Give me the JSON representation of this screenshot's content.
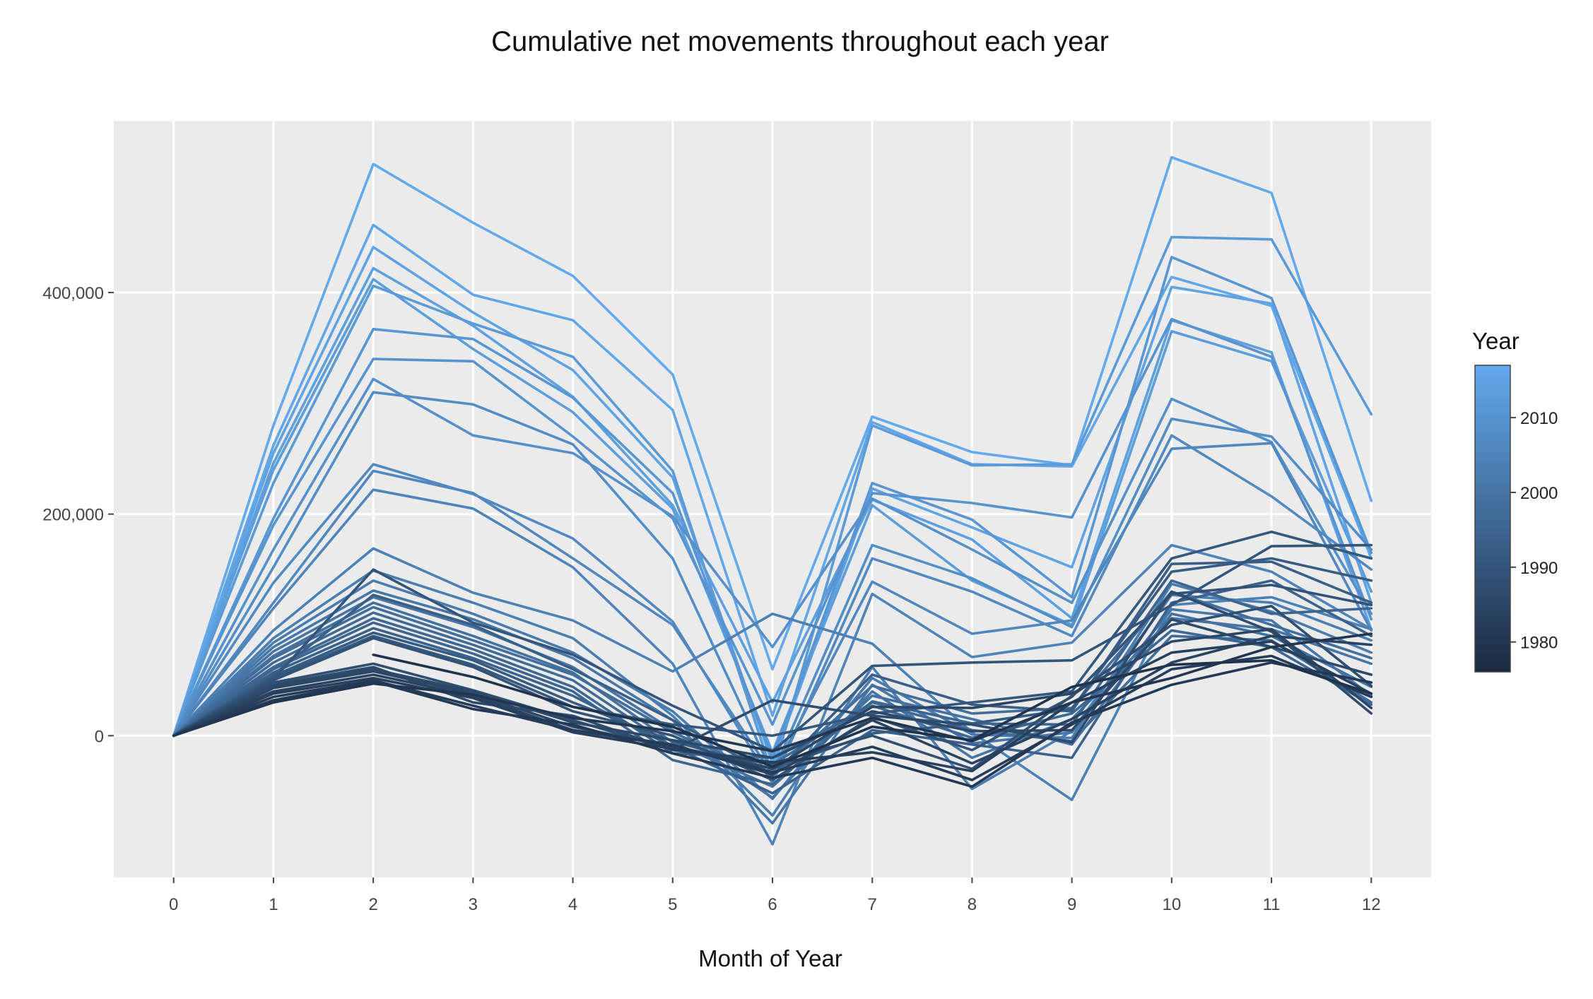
{
  "chart_data": {
    "type": "line",
    "title": "Cumulative net movements throughout each year",
    "xlabel": "Month of Year",
    "ylabel": "",
    "x": [
      0,
      1,
      2,
      3,
      4,
      5,
      6,
      7,
      8,
      9,
      10,
      11,
      12
    ],
    "x_tick_labels": [
      "0",
      "1",
      "2",
      "3",
      "4",
      "5",
      "6",
      "7",
      "8",
      "9",
      "10",
      "11",
      "12"
    ],
    "xlim": [
      -0.6,
      12.6
    ],
    "ylim": [
      -128000,
      555000
    ],
    "y_ticks": [
      0,
      200000,
      400000
    ],
    "y_tick_labels": [
      "0",
      "200,000",
      "400,000"
    ],
    "grid": true,
    "legend_position": "right",
    "colorbar": {
      "title": "Year",
      "range": [
        1976,
        2017
      ],
      "ticks": [
        1980,
        1990,
        2000,
        2010
      ],
      "tick_labels": [
        "1980",
        "1990",
        "2000",
        "2010"
      ],
      "color_low": "#1b2a40",
      "color_high": "#63a9ec"
    },
    "colors": {
      "plot_background": "#ebebeb",
      "grid": "#ffffff",
      "page_background": "#ffffff"
    },
    "series": [
      {
        "year": 2017,
        "values": [
          0,
          280000,
          516000,
          463000,
          415000,
          326000,
          60000,
          288000,
          256000,
          244000,
          522000,
          490000,
          212000
        ]
      },
      {
        "year": 2016,
        "values": [
          0,
          262000,
          461000,
          398000,
          375000,
          294000,
          18000,
          283000,
          245000,
          243000,
          414000,
          388000,
          160000
        ]
      },
      {
        "year": 2015,
        "values": [
          0,
          255000,
          441000,
          382000,
          330000,
          233000,
          -25000,
          223000,
          188000,
          152000,
          405000,
          390000,
          120000
        ]
      },
      {
        "year": 2014,
        "values": [
          0,
          246000,
          422000,
          370000,
          306000,
          208000,
          30000,
          213000,
          177000,
          106000,
          375000,
          346000,
          96000
        ]
      },
      {
        "year": 2013,
        "values": [
          0,
          240000,
          412000,
          349000,
          292000,
          205000,
          -15000,
          208000,
          140000,
          100000,
          365000,
          338000,
          130000
        ]
      },
      {
        "year": 2012,
        "values": [
          0,
          228000,
          406000,
          372000,
          342000,
          239000,
          -35000,
          280000,
          244000,
          245000,
          450000,
          448000,
          290000
        ]
      },
      {
        "year": 2011,
        "values": [
          0,
          196000,
          367000,
          358000,
          305000,
          219000,
          -20000,
          228000,
          195000,
          125000,
          432000,
          395000,
          165000
        ]
      },
      {
        "year": 2010,
        "values": [
          0,
          190000,
          340000,
          338000,
          270000,
          196000,
          10000,
          219000,
          210000,
          197000,
          376000,
          342000,
          105000
        ]
      },
      {
        "year": 2009,
        "values": [
          0,
          168000,
          322000,
          271000,
          255000,
          198000,
          80000,
          214000,
          168000,
          120000,
          304000,
          265000,
          110000
        ]
      },
      {
        "year": 2008,
        "values": [
          0,
          152000,
          310000,
          299000,
          263000,
          160000,
          -34000,
          172000,
          142000,
          98000,
          286000,
          270000,
          168000
        ]
      },
      {
        "year": 2007,
        "values": [
          0,
          138000,
          245000,
          218000,
          178000,
          103000,
          -43000,
          160000,
          130000,
          90000,
          271000,
          216000,
          150000
        ]
      },
      {
        "year": 2006,
        "values": [
          0,
          120000,
          239000,
          219000,
          160000,
          100000,
          -35000,
          139000,
          92000,
          104000,
          259000,
          264000,
          95000
        ]
      },
      {
        "year": 2005,
        "values": [
          0,
          115000,
          222000,
          205000,
          152000,
          65000,
          -98000,
          128000,
          71000,
          84000,
          172000,
          148000,
          96000
        ]
      },
      {
        "year": 2004,
        "values": [
          0,
          95000,
          169000,
          129000,
          104000,
          58000,
          110000,
          83000,
          3000,
          -58000,
          118000,
          125000,
          96000
        ]
      },
      {
        "year": 2003,
        "values": [
          0,
          88000,
          149000,
          120000,
          88000,
          18000,
          -72000,
          62000,
          -48000,
          4000,
          127000,
          120000,
          86000
        ]
      },
      {
        "year": 2002,
        "values": [
          0,
          84000,
          140000,
          110000,
          75000,
          22000,
          -57000,
          52000,
          1000,
          -2000,
          137000,
          112000,
          75000
        ]
      },
      {
        "year": 2001,
        "values": [
          0,
          80000,
          131000,
          105000,
          70000,
          14000,
          -79000,
          46000,
          -7000,
          3000,
          114000,
          104000,
          36000
        ]
      },
      {
        "year": 2000,
        "values": [
          0,
          76000,
          125000,
          98000,
          62000,
          5000,
          -56000,
          40000,
          -20000,
          15000,
          106000,
          96000,
          65000
        ]
      },
      {
        "year": 1999,
        "values": [
          0,
          72000,
          120000,
          90000,
          57000,
          -6000,
          -46000,
          36000,
          15000,
          -8000,
          110000,
          90000,
          44000
        ]
      },
      {
        "year": 1998,
        "values": [
          0,
          70000,
          116000,
          86000,
          55000,
          3000,
          -36000,
          45000,
          20000,
          25000,
          130000,
          100000,
          70000
        ]
      },
      {
        "year": 1997,
        "values": [
          0,
          66000,
          111000,
          82000,
          50000,
          -10000,
          -26000,
          30000,
          5000,
          -5000,
          90000,
          86000,
          30000
        ]
      },
      {
        "year": 1996,
        "values": [
          0,
          62000,
          106000,
          78000,
          44000,
          -16000,
          -20000,
          27000,
          -2000,
          20000,
          95000,
          80000,
          28000
        ]
      },
      {
        "year": 1995,
        "values": [
          0,
          60000,
          102000,
          74000,
          40000,
          -22000,
          -44000,
          31000,
          11000,
          10000,
          140000,
          110000,
          115000
        ]
      },
      {
        "year": 1994,
        "values": [
          0,
          57000,
          97000,
          70000,
          36000,
          -10000,
          -52000,
          5000,
          -8000,
          -20000,
          120000,
          140000,
          90000
        ]
      },
      {
        "year": 1993,
        "values": [
          0,
          55000,
          127000,
          100000,
          60000,
          14000,
          -36000,
          55000,
          28000,
          22000,
          155000,
          157000,
          120000
        ]
      },
      {
        "year": 1992,
        "values": [
          0,
          54000,
          93000,
          68000,
          30000,
          -5000,
          -30000,
          2000,
          11000,
          24000,
          148000,
          160000,
          140000
        ]
      },
      {
        "year": 1991,
        "values": [
          0,
          52000,
          90000,
          64000,
          26000,
          10000,
          0,
          20000,
          30000,
          40000,
          160000,
          184000,
          160000
        ]
      },
      {
        "year": 1990,
        "values": [
          0,
          51000,
          150000,
          102000,
          73000,
          27000,
          -14000,
          63000,
          66000,
          68000,
          118000,
          171000,
          172000
        ]
      },
      {
        "year": 1989,
        "values": [
          0,
          50000,
          88000,
          62000,
          22000,
          0,
          -40000,
          17000,
          -13000,
          35000,
          128000,
          136000,
          118000
        ]
      },
      {
        "year": 1988,
        "values": [
          0,
          48000,
          65000,
          41000,
          14000,
          -13000,
          -25000,
          0,
          -30000,
          36000,
          100000,
          117000,
          45000
        ]
      },
      {
        "year": 1987,
        "values": [
          0,
          46000,
          62000,
          30000,
          18000,
          -13000,
          32000,
          18000,
          10000,
          -6000,
          130000,
          94000,
          20000
        ]
      },
      {
        "year": 1986,
        "values": [
          0,
          45000,
          60000,
          40000,
          12000,
          -4000,
          -20000,
          22000,
          4000,
          5000,
          105000,
          80000,
          55000
        ]
      },
      {
        "year": 1985,
        "values": [
          0,
          43000,
          58000,
          38000,
          8000,
          -10000,
          -30000,
          26000,
          25000,
          38000,
          85000,
          96000,
          25000
        ]
      },
      {
        "year": 1984,
        "values": [
          0,
          40000,
          55000,
          36000,
          5000,
          -8000,
          -35000,
          14000,
          -25000,
          15000,
          66000,
          90000,
          82000
        ]
      },
      {
        "year": 1983,
        "values": [
          0,
          38000,
          52000,
          34000,
          3000,
          -12000,
          -24000,
          -15000,
          -32000,
          30000,
          75000,
          85000,
          38000
        ]
      },
      {
        "year": 1982,
        "values": [
          0,
          35000,
          50000,
          27000,
          5000,
          -9000,
          -33000,
          -10000,
          -40000,
          10000,
          60000,
          72000,
          35000
        ]
      },
      {
        "year": 1981,
        "values": [
          0,
          32000,
          49000,
          24000,
          10000,
          -16000,
          -38000,
          -20000,
          -46000,
          12000,
          46000,
          66000,
          48000
        ]
      },
      {
        "year": 1980,
        "values": [
          0,
          30000,
          47000,
          37000,
          16000,
          4000,
          -14000,
          16000,
          -5000,
          30000,
          52000,
          80000,
          92000
        ]
      },
      {
        "year": 1979,
        "values": [
          null,
          null,
          73000,
          53000,
          26000,
          8000,
          -28000,
          8000,
          -4000,
          44000,
          64000,
          68000,
          38000
        ]
      }
    ]
  }
}
